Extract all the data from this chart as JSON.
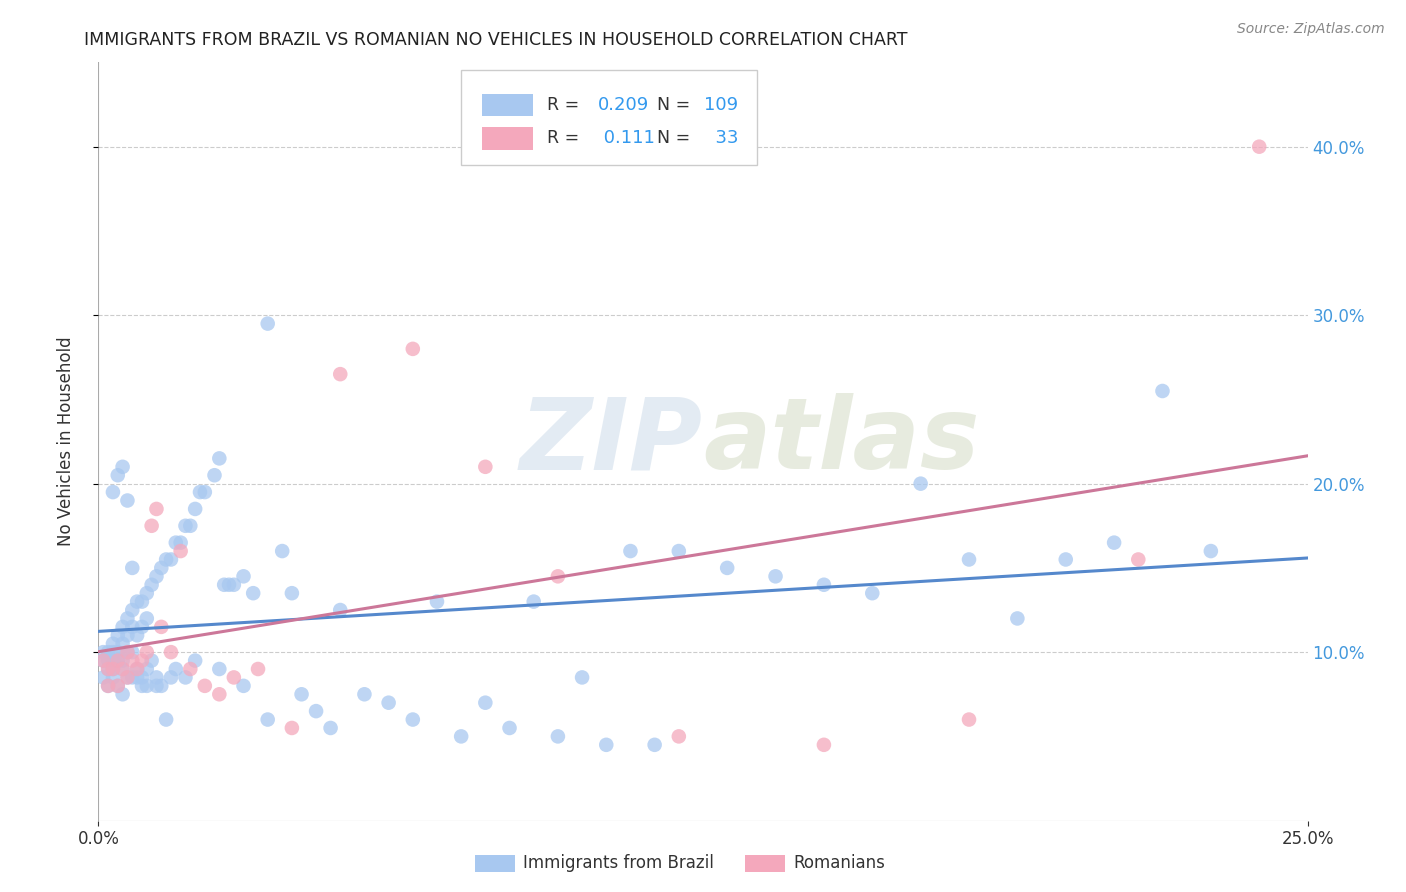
{
  "title": "IMMIGRANTS FROM BRAZIL VS ROMANIAN NO VEHICLES IN HOUSEHOLD CORRELATION CHART",
  "source": "Source: ZipAtlas.com",
  "ylabel": "No Vehicles in Household",
  "xlim": [
    0.0,
    0.25
  ],
  "ylim": [
    0.0,
    0.45
  ],
  "ytick_vals": [
    0.1,
    0.2,
    0.3,
    0.4
  ],
  "xtick_vals": [
    0.0,
    0.25
  ],
  "r_brazil": 0.209,
  "n_brazil": 109,
  "r_romanian": 0.111,
  "n_romanian": 33,
  "brazil_color": "#a8c8f0",
  "romanian_color": "#f4a8bc",
  "brazil_line_color": "#5588cc",
  "romanian_line_color": "#cc7799",
  "legend_label_brazil": "Immigrants from Brazil",
  "legend_label_romanian": "Romanians",
  "watermark_zip": "ZIP",
  "watermark_atlas": "atlas",
  "brazil_x": [
    0.001,
    0.001,
    0.001,
    0.002,
    0.002,
    0.002,
    0.002,
    0.003,
    0.003,
    0.003,
    0.003,
    0.003,
    0.004,
    0.004,
    0.004,
    0.004,
    0.005,
    0.005,
    0.005,
    0.005,
    0.005,
    0.006,
    0.006,
    0.006,
    0.006,
    0.007,
    0.007,
    0.007,
    0.007,
    0.008,
    0.008,
    0.008,
    0.009,
    0.009,
    0.009,
    0.01,
    0.01,
    0.01,
    0.011,
    0.011,
    0.012,
    0.012,
    0.013,
    0.013,
    0.014,
    0.015,
    0.015,
    0.016,
    0.017,
    0.018,
    0.019,
    0.02,
    0.021,
    0.022,
    0.024,
    0.025,
    0.026,
    0.027,
    0.028,
    0.03,
    0.032,
    0.035,
    0.038,
    0.04,
    0.042,
    0.045,
    0.048,
    0.05,
    0.055,
    0.06,
    0.065,
    0.07,
    0.075,
    0.08,
    0.085,
    0.09,
    0.095,
    0.1,
    0.105,
    0.11,
    0.115,
    0.12,
    0.13,
    0.14,
    0.15,
    0.16,
    0.17,
    0.18,
    0.19,
    0.2,
    0.21,
    0.22,
    0.23,
    0.003,
    0.004,
    0.005,
    0.006,
    0.007,
    0.008,
    0.009,
    0.01,
    0.012,
    0.014,
    0.016,
    0.018,
    0.02,
    0.025,
    0.03,
    0.035
  ],
  "brazil_y": [
    0.1,
    0.095,
    0.085,
    0.1,
    0.095,
    0.09,
    0.08,
    0.105,
    0.1,
    0.095,
    0.09,
    0.085,
    0.11,
    0.1,
    0.095,
    0.08,
    0.115,
    0.105,
    0.095,
    0.09,
    0.075,
    0.12,
    0.11,
    0.1,
    0.085,
    0.125,
    0.115,
    0.1,
    0.085,
    0.13,
    0.11,
    0.09,
    0.13,
    0.115,
    0.085,
    0.135,
    0.12,
    0.08,
    0.14,
    0.095,
    0.145,
    0.085,
    0.15,
    0.08,
    0.155,
    0.155,
    0.085,
    0.165,
    0.165,
    0.175,
    0.175,
    0.185,
    0.195,
    0.195,
    0.205,
    0.215,
    0.14,
    0.14,
    0.14,
    0.145,
    0.135,
    0.295,
    0.16,
    0.135,
    0.075,
    0.065,
    0.055,
    0.125,
    0.075,
    0.07,
    0.06,
    0.13,
    0.05,
    0.07,
    0.055,
    0.13,
    0.05,
    0.085,
    0.045,
    0.16,
    0.045,
    0.16,
    0.15,
    0.145,
    0.14,
    0.135,
    0.2,
    0.155,
    0.12,
    0.155,
    0.165,
    0.255,
    0.16,
    0.195,
    0.205,
    0.21,
    0.19,
    0.15,
    0.085,
    0.08,
    0.09,
    0.08,
    0.06,
    0.09,
    0.085,
    0.095,
    0.09,
    0.08,
    0.06
  ],
  "romanian_x": [
    0.001,
    0.002,
    0.002,
    0.003,
    0.004,
    0.004,
    0.005,
    0.006,
    0.006,
    0.007,
    0.008,
    0.009,
    0.01,
    0.011,
    0.012,
    0.013,
    0.015,
    0.017,
    0.019,
    0.022,
    0.025,
    0.028,
    0.033,
    0.04,
    0.05,
    0.065,
    0.08,
    0.095,
    0.12,
    0.15,
    0.18,
    0.215,
    0.24
  ],
  "romanian_y": [
    0.095,
    0.09,
    0.08,
    0.09,
    0.095,
    0.08,
    0.09,
    0.1,
    0.085,
    0.095,
    0.09,
    0.095,
    0.1,
    0.175,
    0.185,
    0.115,
    0.1,
    0.16,
    0.09,
    0.08,
    0.075,
    0.085,
    0.09,
    0.055,
    0.265,
    0.28,
    0.21,
    0.145,
    0.05,
    0.045,
    0.06,
    0.155,
    0.4
  ]
}
